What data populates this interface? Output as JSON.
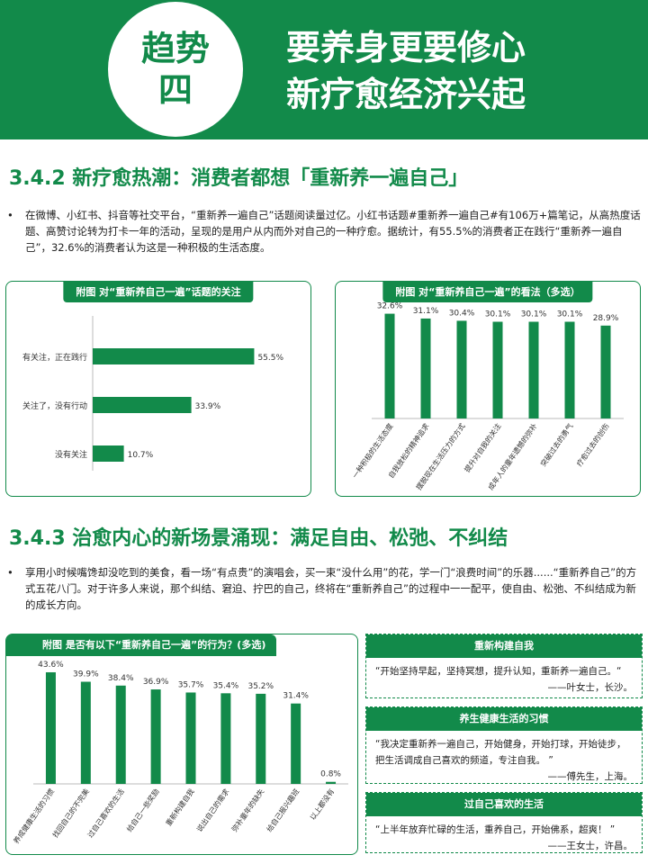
{
  "banner": {
    "badge_line1": "趋势",
    "badge_line2": "四",
    "title_line1": "要养身更要修心",
    "title_line2": "新疗愈经济兴起"
  },
  "section1": {
    "heading": "3.4.2 新疗愈热潮：消费者都想「重新养一遍自己」",
    "bullet": "•",
    "paragraph": "在微博、小红书、抖音等社交平台，“重新养一遍自己”话题阅读量过亿。小红书话题#重新养一遍自己#有106万+篇笔记，从高热度话题、高赞讨论转为打卡一年的活动，呈现的是用户从内而外对自己的一种疗愈。据统计，有55.5%的消费者正在践行“重新养一遍自己”，32.6%的消费者认为这是一种积极的生活态度。"
  },
  "section2": {
    "heading": "3.4.3  治愈内心的新场景涌现：满足自由、松弛、不纠结",
    "bullet": "•",
    "paragraph": "享用小时候嘴馋却没吃到的美食，看一场“有点贵”的演唱会，买一束“没什么用”的花，学一门“浪费时间”的乐器......“重新养自己”的方式五花八门。对于许多人来说，那个纠结、窘迫、拧巴的自己，终将在“重新养自己”的过程中一一配平，使自由、松弛、不纠结成为新的成长方向。"
  },
  "quotes": [
    {
      "title": "重新构建自我",
      "text": "“开始坚持早起，坚持冥想，提升认知，重新养一遍自己。“",
      "author": "——叶女士，长沙。"
    },
    {
      "title": "养生健康生活的习惯",
      "text": "“我决定重新养一遍自己，开始健身，开始打球，开始徒步，把生活调成自己喜欢的频道，专注自我。 ”",
      "author": "——傅先生，上海。"
    },
    {
      "title": "过自己喜欢的生活",
      "text": "“上半年放弃忙碌的生活，重养自己，开始佛系，超爽！ ”",
      "author": "——王女士，许昌。"
    }
  ],
  "chart_data": [
    {
      "type": "bar",
      "orientation": "horizontal",
      "title": "附图  对“重新养自己一遍”话题的关注",
      "categories": [
        "有关注，正在践行",
        "关注了，没有行动",
        "没有关注"
      ],
      "values": [
        55.5,
        33.9,
        10.7
      ],
      "value_labels": [
        "55.5%",
        "33.9%",
        "10.7%"
      ],
      "unit": "%",
      "xlim": [
        0,
        60
      ],
      "color": "#128a4a",
      "grid": false
    },
    {
      "type": "bar",
      "orientation": "vertical",
      "title": "附图  对“重新养自己一遍”的看法（多选）",
      "categories": [
        "一种积极的生活态度",
        "自我放松的精神追求",
        "摆脱现在生活压力的方式",
        "提升对自我的关注",
        "成年人的童年遗憾的弥补",
        "突破过去的勇气",
        "疗愈过去的创伤"
      ],
      "values": [
        32.6,
        31.1,
        30.4,
        30.1,
        30.1,
        30.1,
        28.9
      ],
      "value_labels": [
        "32.6%",
        "31.1%",
        "30.4%",
        "30.1%",
        "30.1%",
        "30.1%",
        "28.9%"
      ],
      "unit": "%",
      "ylim": [
        0,
        35
      ],
      "color": "#128a4a",
      "grid": false
    },
    {
      "type": "bar",
      "orientation": "vertical",
      "title": "附图  是否有以下“重新养自己一遍”的行为？(多选)",
      "categories": [
        "养成健康生活的习惯",
        "找回自己的不完美",
        "过自己喜欢的生活",
        "给自己一些奖励",
        "重新构建自我",
        "说出自己的需求",
        "弥补童年的缺失",
        "给自己报兴趣班",
        "以上都没有"
      ],
      "values": [
        43.6,
        39.9,
        38.4,
        36.9,
        35.7,
        35.4,
        35.2,
        31.4,
        0.8
      ],
      "value_labels": [
        "43.6%",
        "39.9%",
        "38.4%",
        "36.9%",
        "35.7%",
        "35.4%",
        "35.2%",
        "31.4%",
        "0.8%"
      ],
      "unit": "%",
      "ylim": [
        0,
        45
      ],
      "color": "#128a4a",
      "grid": false
    }
  ]
}
